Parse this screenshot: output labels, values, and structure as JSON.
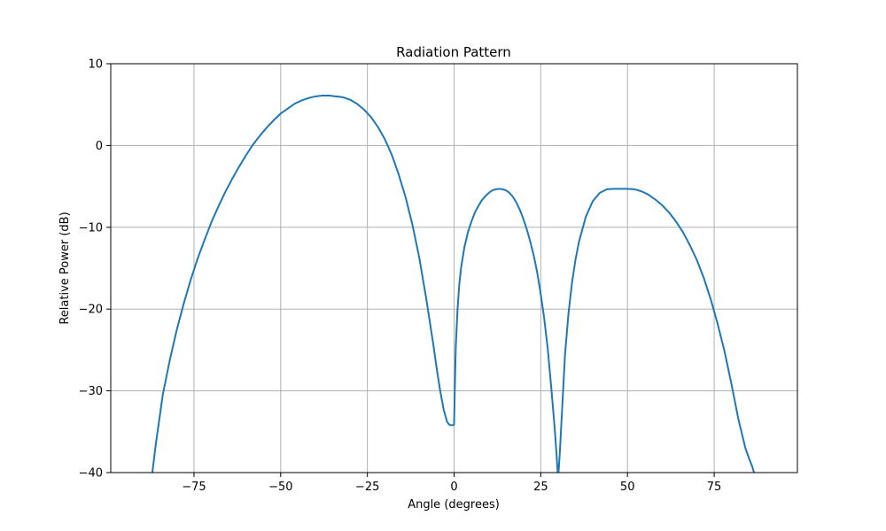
{
  "chart_data": {
    "type": "line",
    "title": "Radiation Pattern",
    "xlabel": "Angle (degrees)",
    "ylabel": "Relative Power (dB)",
    "xlim": [
      -99,
      99
    ],
    "ylim": [
      -40,
      10
    ],
    "xticks": [
      -75,
      -50,
      -25,
      0,
      25,
      50,
      75
    ],
    "xtick_labels": [
      "−75",
      "−50",
      "−25",
      "0",
      "25",
      "50",
      "75"
    ],
    "yticks": [
      -40,
      -30,
      -20,
      -10,
      0,
      10
    ],
    "ytick_labels": [
      "−40",
      "−30",
      "−20",
      "−10",
      "0",
      "10"
    ],
    "grid": true,
    "series": [
      {
        "color": "#1f77b4",
        "x": [
          -87,
          -86,
          -85,
          -84,
          -82,
          -80,
          -78,
          -76,
          -74,
          -72,
          -70,
          -68,
          -66,
          -64,
          -62,
          -60,
          -58,
          -56,
          -54,
          -52,
          -50,
          -48,
          -46,
          -44,
          -42,
          -40,
          -38,
          -36,
          -34,
          -32,
          -30,
          -28,
          -26,
          -24,
          -22,
          -20,
          -18,
          -16,
          -14,
          -12,
          -10,
          -8,
          -6,
          -5,
          -4,
          -3,
          -2,
          -1.5,
          -1,
          -0.5,
          -0.2,
          0,
          0.2,
          0.5,
          1,
          1.5,
          2,
          3,
          4,
          5,
          6,
          7,
          8,
          9,
          10,
          11,
          12,
          13,
          14,
          15,
          16,
          17,
          18,
          19,
          20,
          21,
          22,
          23,
          24,
          25,
          26,
          27,
          28,
          29,
          29.5,
          29.8,
          30,
          30.2,
          30.5,
          31,
          32,
          33,
          34,
          35,
          36,
          38,
          40,
          42,
          44,
          46,
          48,
          50,
          52,
          54,
          56,
          58,
          60,
          62,
          64,
          66,
          68,
          70,
          72,
          74,
          76,
          78,
          80,
          82,
          84,
          85,
          86,
          86.5
        ],
        "y": [
          -40,
          -36.5,
          -33.5,
          -30.5,
          -26.3,
          -22.6,
          -19.4,
          -16.5,
          -13.9,
          -11.6,
          -9.4,
          -7.5,
          -5.7,
          -4.1,
          -2.6,
          -1.2,
          0.1,
          1.2,
          2.2,
          3.1,
          3.9,
          4.5,
          5.1,
          5.5,
          5.8,
          6.0,
          6.1,
          6.1,
          6.0,
          5.9,
          5.6,
          5.1,
          4.4,
          3.5,
          2.3,
          0.8,
          -1.1,
          -3.5,
          -6.3,
          -9.7,
          -13.8,
          -18.8,
          -24.3,
          -27.3,
          -30.0,
          -32.3,
          -33.8,
          -34.1,
          -34.2,
          -34.2,
          -34.2,
          -34.1,
          -30.0,
          -24.5,
          -20.0,
          -17.0,
          -15.0,
          -12.4,
          -10.6,
          -9.3,
          -8.2,
          -7.4,
          -6.7,
          -6.2,
          -5.8,
          -5.5,
          -5.35,
          -5.3,
          -5.35,
          -5.5,
          -5.8,
          -6.3,
          -7.0,
          -7.9,
          -9.0,
          -10.3,
          -11.8,
          -13.5,
          -15.6,
          -18.2,
          -21.2,
          -24.8,
          -29.5,
          -34.5,
          -37.5,
          -39.5,
          -40.5,
          -39.5,
          -37.5,
          -33.5,
          -25.5,
          -20.5,
          -16.8,
          -14.0,
          -11.8,
          -8.7,
          -6.8,
          -5.8,
          -5.35,
          -5.3,
          -5.3,
          -5.3,
          -5.35,
          -5.6,
          -6.0,
          -6.6,
          -7.3,
          -8.2,
          -9.3,
          -10.6,
          -12.2,
          -14.0,
          -16.2,
          -18.8,
          -21.8,
          -25.2,
          -29.2,
          -33.5,
          -37.0,
          -38.2,
          -39.3,
          -40
        ]
      }
    ]
  }
}
